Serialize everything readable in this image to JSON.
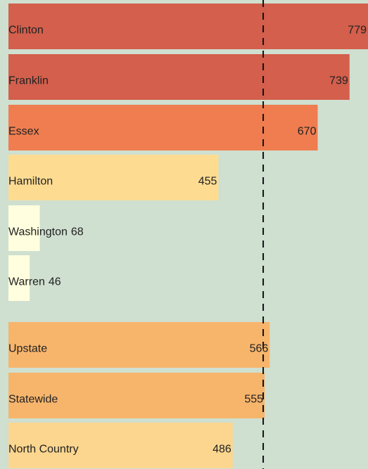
{
  "chart_data": {
    "type": "hbar",
    "categories": [
      "Clinton",
      "Franklin",
      "Essex",
      "Hamilton",
      "Washington",
      "Warren",
      "Upstate",
      "Statewide",
      "North Country"
    ],
    "values": [
      779,
      739,
      670,
      455,
      68,
      46,
      566,
      555,
      486
    ],
    "colors": [
      "#d35f4c",
      "#d35f4c",
      "#ef7d50",
      "#fddc92",
      "#fffede",
      "#fffede",
      "#f7b56c",
      "#f7b56c",
      "#fcd68f"
    ]
  }
}
